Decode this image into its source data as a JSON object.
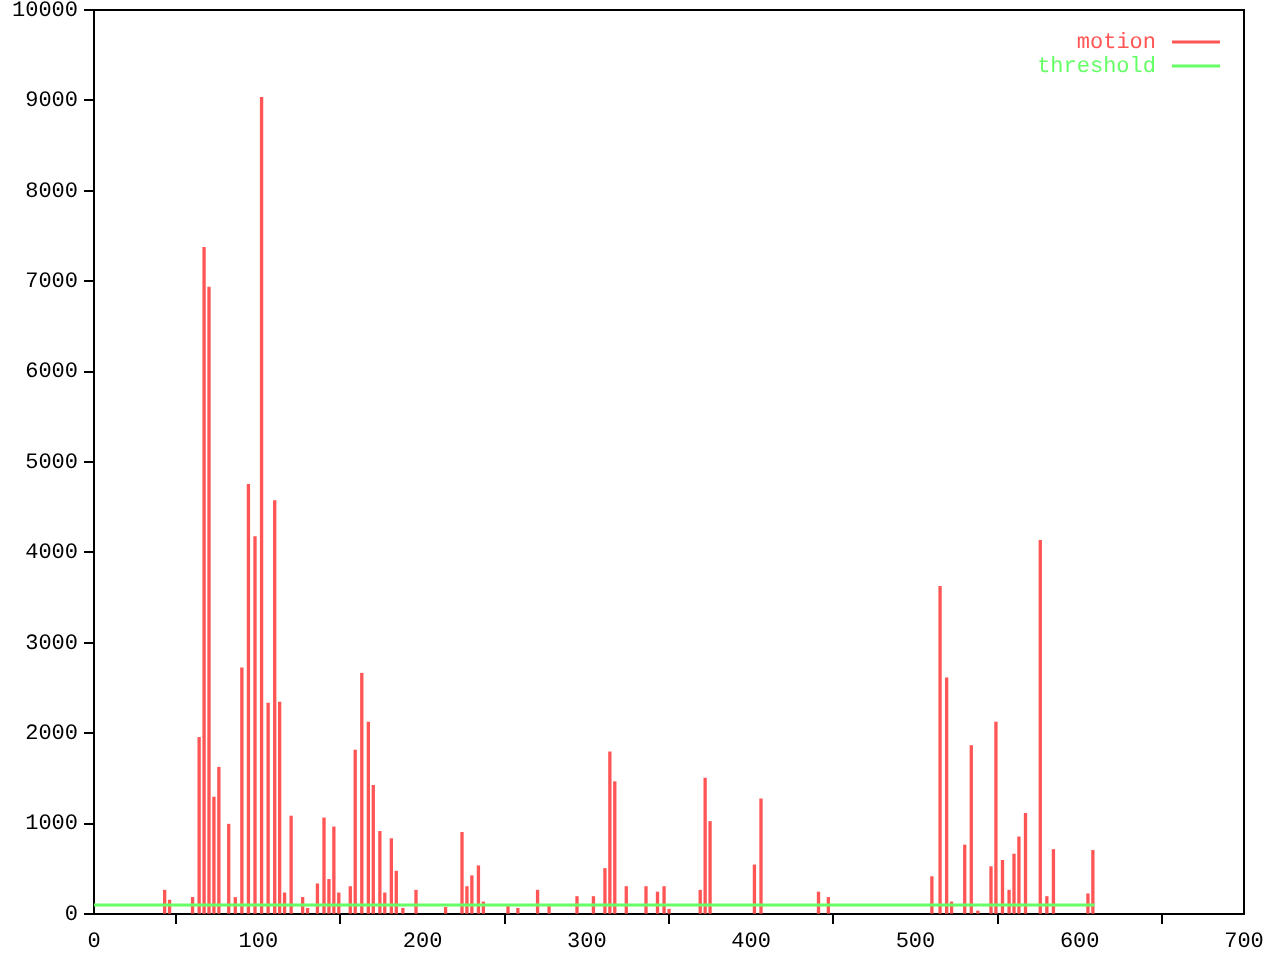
{
  "chart_data": {
    "type": "bar",
    "x": [
      43,
      46,
      60,
      64,
      67,
      70,
      73,
      76,
      82,
      86,
      90,
      94,
      98,
      102,
      106,
      110,
      113,
      116,
      120,
      127,
      130,
      136,
      140,
      143,
      146,
      149,
      156,
      159,
      163,
      167,
      170,
      174,
      177,
      181,
      184,
      188,
      196,
      214,
      224,
      227,
      230,
      234,
      237,
      252,
      258,
      270,
      277,
      294,
      304,
      311,
      314,
      317,
      324,
      336,
      343,
      347,
      350,
      369,
      372,
      375,
      402,
      406,
      441,
      447,
      510,
      515,
      519,
      522,
      530,
      534,
      538,
      546,
      549,
      553,
      557,
      560,
      563,
      567,
      576,
      580,
      584,
      605,
      608
    ],
    "series": [
      {
        "name": "motion",
        "color": "#ff5555",
        "values": [
          260,
          150,
          180,
          1950,
          7370,
          6930,
          1290,
          1620,
          990,
          180,
          2720,
          4750,
          4170,
          9030,
          2330,
          4570,
          2340,
          230,
          1080,
          180,
          60,
          330,
          1060,
          380,
          960,
          230,
          300,
          1810,
          2660,
          2120,
          1420,
          910,
          230,
          830,
          470,
          60,
          260,
          70,
          900,
          300,
          420,
          530,
          130,
          80,
          60,
          260,
          80,
          190,
          190,
          500,
          1790,
          1460,
          300,
          300,
          240,
          300,
          50,
          260,
          1500,
          1020,
          540,
          1270,
          240,
          180,
          410,
          3620,
          2610,
          130,
          760,
          1860,
          30,
          520,
          2120,
          590,
          260,
          660,
          850,
          1110,
          4130,
          190,
          710,
          220,
          700
        ]
      },
      {
        "name": "threshold",
        "type": "line",
        "color": "#66ff66",
        "x": [
          0,
          609
        ],
        "values": [
          100,
          100
        ]
      }
    ],
    "xlim": [
      0,
      700
    ],
    "xticks": [
      0,
      100,
      200,
      300,
      400,
      500,
      600,
      700
    ],
    "ylim": [
      0,
      10000
    ],
    "yticks": [
      0,
      1000,
      2000,
      3000,
      4000,
      5000,
      6000,
      7000,
      8000,
      9000,
      10000
    ],
    "grid": false,
    "legend": "top right"
  }
}
